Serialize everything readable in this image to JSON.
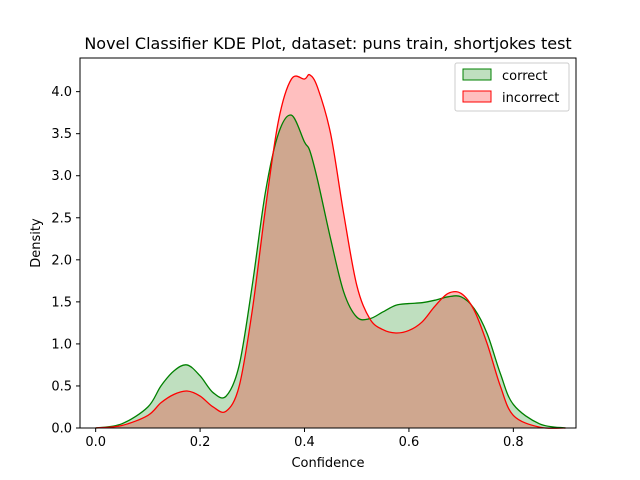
{
  "chart_data": {
    "type": "area",
    "title": "Novel Classifier KDE Plot, dataset: puns train, shortjokes test",
    "xlabel": "Confidence",
    "ylabel": "Density",
    "xlim": [
      -0.03,
      0.92
    ],
    "ylim": [
      0,
      4.4
    ],
    "xticks": [
      0.0,
      0.2,
      0.4,
      0.6,
      0.8
    ],
    "xtick_labels": [
      "0.0",
      "0.2",
      "0.4",
      "0.6",
      "0.8"
    ],
    "yticks": [
      0.0,
      0.5,
      1.0,
      1.5,
      2.0,
      2.5,
      3.0,
      3.5,
      4.0
    ],
    "ytick_labels": [
      "0.0",
      "0.5",
      "1.0",
      "1.5",
      "2.0",
      "2.5",
      "3.0",
      "3.5",
      "4.0"
    ],
    "grid": false,
    "legend_position": "top-right",
    "x": [
      0.0,
      0.05,
      0.1,
      0.125,
      0.15,
      0.175,
      0.2,
      0.225,
      0.25,
      0.275,
      0.3,
      0.325,
      0.35,
      0.375,
      0.4,
      0.41,
      0.425,
      0.45,
      0.475,
      0.5,
      0.525,
      0.55,
      0.575,
      0.6,
      0.625,
      0.65,
      0.675,
      0.7,
      0.725,
      0.75,
      0.775,
      0.8,
      0.85,
      0.9
    ],
    "series": [
      {
        "name": "correct",
        "color": "#008000",
        "fill": "#008000",
        "values": [
          0.0,
          0.05,
          0.25,
          0.5,
          0.68,
          0.75,
          0.62,
          0.42,
          0.38,
          0.75,
          1.7,
          2.8,
          3.5,
          3.72,
          3.4,
          3.3,
          2.95,
          2.25,
          1.62,
          1.32,
          1.3,
          1.38,
          1.46,
          1.48,
          1.49,
          1.52,
          1.56,
          1.56,
          1.42,
          1.12,
          0.65,
          0.28,
          0.05,
          0.0
        ]
      },
      {
        "name": "incorrect",
        "color": "#ff0000",
        "fill": "#ff0000",
        "values": [
          0.0,
          0.03,
          0.15,
          0.3,
          0.4,
          0.44,
          0.38,
          0.25,
          0.2,
          0.5,
          1.4,
          2.6,
          3.65,
          4.15,
          4.15,
          4.2,
          4.05,
          3.5,
          2.55,
          1.7,
          1.3,
          1.17,
          1.13,
          1.16,
          1.26,
          1.45,
          1.6,
          1.6,
          1.4,
          1.0,
          0.5,
          0.15,
          0.01,
          0.0
        ]
      }
    ]
  }
}
